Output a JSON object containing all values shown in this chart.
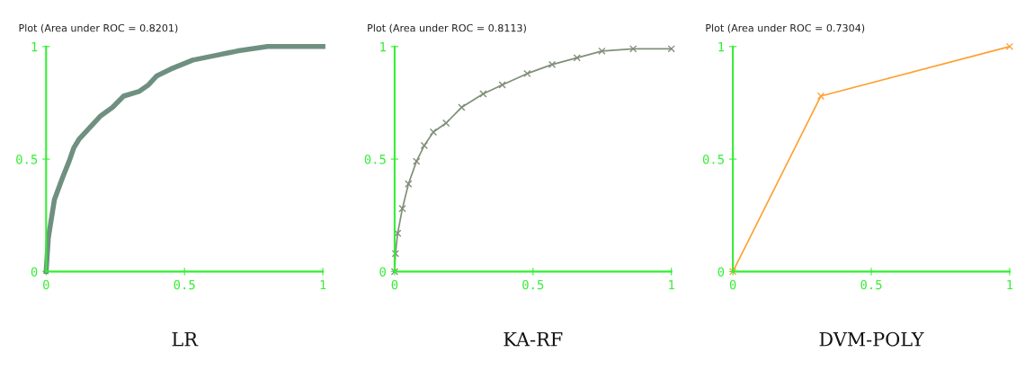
{
  "chart_data": [
    {
      "type": "line",
      "title": "Plot (Area under ROC = 0.8201)",
      "xlabel": "LR",
      "x": [
        0,
        0.008,
        0.03,
        0.045,
        0.06,
        0.083,
        0.1,
        0.12,
        0.15,
        0.195,
        0.24,
        0.28,
        0.335,
        0.37,
        0.4,
        0.45,
        0.53,
        0.61,
        0.69,
        0.8,
        1
      ],
      "series": [
        {
          "color": "#6f9080",
          "values": [
            0,
            0.15,
            0.32,
            0.37,
            0.42,
            0.49,
            0.55,
            0.59,
            0.63,
            0.69,
            0.73,
            0.78,
            0.8,
            0.83,
            0.87,
            0.9,
            0.94,
            0.96,
            0.98,
            1,
            1
          ]
        }
      ],
      "marker": "none",
      "xlim": [
        0,
        1
      ],
      "ylim": [
        0,
        1
      ],
      "xticks": [
        0,
        0.5,
        1
      ],
      "yticks": [
        0,
        0.5,
        1
      ],
      "grid": false
    },
    {
      "type": "line",
      "title": "Plot (Area under ROC = 0.8113)",
      "xlabel": "KA-RF",
      "x": [
        0,
        0.003,
        0.011,
        0.028,
        0.05,
        0.079,
        0.107,
        0.14,
        0.186,
        0.242,
        0.32,
        0.389,
        0.479,
        0.569,
        0.659,
        0.749,
        0.862,
        1
      ],
      "series": [
        {
          "color": "#7f8f78",
          "values": [
            0,
            0.08,
            0.17,
            0.28,
            0.39,
            0.49,
            0.56,
            0.62,
            0.66,
            0.73,
            0.79,
            0.83,
            0.88,
            0.92,
            0.95,
            0.98,
            0.99,
            0.99
          ]
        }
      ],
      "marker": "cross",
      "xlim": [
        0,
        1
      ],
      "ylim": [
        0,
        1
      ],
      "xticks": [
        0,
        0.5,
        1
      ],
      "yticks": [
        0,
        0.5,
        1
      ],
      "grid": false
    },
    {
      "type": "line",
      "title": "Plot (Area under ROC = 0.7304)",
      "xlabel": "DVM-POLY",
      "x": [
        0,
        0.318,
        1
      ],
      "series": [
        {
          "color": "#ffa030",
          "values": [
            0,
            0.78,
            1
          ]
        }
      ],
      "marker": "cross",
      "xlim": [
        0,
        1
      ],
      "ylim": [
        0,
        1
      ],
      "xticks": [
        0,
        0.5,
        1
      ],
      "yticks": [
        0,
        0.5,
        1
      ],
      "grid": false
    }
  ]
}
